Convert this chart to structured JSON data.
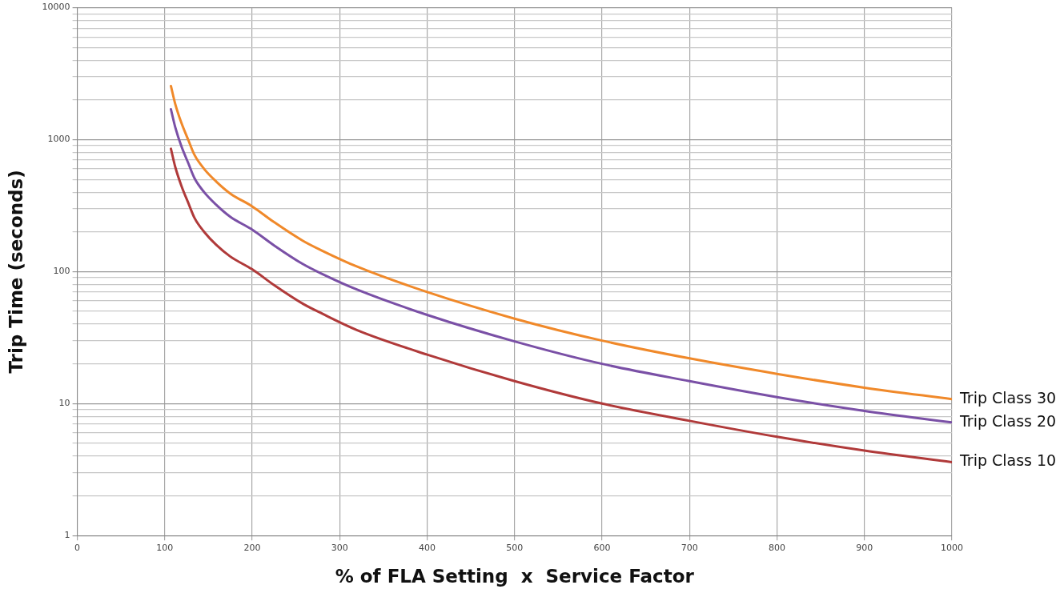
{
  "chart_data": {
    "type": "line",
    "xlabel": "% of FLA Setting  x  Service Factor",
    "ylabel": "Trip Time (seconds)",
    "log": "y",
    "grid": true,
    "legend": false,
    "marker": "none",
    "line_style": "solid",
    "xlim": [
      0,
      1000
    ],
    "xticks": [
      0,
      100,
      200,
      300,
      400,
      500,
      600,
      700,
      800,
      900,
      1000
    ],
    "ylim": [
      1,
      10000
    ],
    "yticks": [
      1,
      {
        "value": 2,
        "label": null
      },
      {
        "value": 3,
        "label": null
      },
      {
        "value": 4,
        "label": null
      },
      {
        "value": 5,
        "label": null
      },
      {
        "value": 6,
        "label": null
      },
      {
        "value": 7,
        "label": null
      },
      {
        "value": 8,
        "label": null
      },
      {
        "value": 9,
        "label": null
      },
      10,
      {
        "value": 20,
        "label": null
      },
      {
        "value": 30,
        "label": null
      },
      {
        "value": 40,
        "label": null
      },
      {
        "value": 50,
        "label": null
      },
      {
        "value": 60,
        "label": null
      },
      {
        "value": 70,
        "label": null
      },
      {
        "value": 80,
        "label": null
      },
      {
        "value": 90,
        "label": null
      },
      100,
      {
        "value": 200,
        "label": null
      },
      {
        "value": 300,
        "label": null
      },
      {
        "value": 400,
        "label": null
      },
      {
        "value": 500,
        "label": null
      },
      {
        "value": 600,
        "label": null
      },
      {
        "value": 700,
        "label": null
      },
      {
        "value": 800,
        "label": null
      },
      {
        "value": 900,
        "label": null
      },
      1000,
      {
        "value": 2000,
        "label": null
      },
      {
        "value": 3000,
        "label": null
      },
      {
        "value": 4000,
        "label": null
      },
      {
        "value": 5000,
        "label": null
      },
      {
        "value": 6000,
        "label": null
      },
      {
        "value": 7000,
        "label": null
      },
      {
        "value": 8000,
        "label": null
      },
      {
        "value": 9000,
        "label": null
      },
      10000
    ],
    "x": [
      107,
      112,
      119,
      127,
      134,
      145,
      159,
      175,
      200,
      225,
      258,
      280,
      320,
      400,
      500,
      600,
      700,
      800,
      900,
      1000
    ],
    "series": [
      {
        "name": "Trip Class 30",
        "color": "#f0892a",
        "values": [
          2550,
          1860,
          1340,
          990,
          765,
          600,
          480,
          390,
          312,
          237,
          171,
          144,
          109,
          70,
          44,
          30,
          22,
          16.8,
          13.2,
          10.8
        ]
      },
      {
        "name": "Trip Class 20",
        "color": "#7a50a6",
        "values": [
          1700,
          1240,
          890,
          660,
          510,
          400,
          320,
          260,
          208,
          158,
          114,
          96,
          73,
          47,
          29.6,
          20,
          14.8,
          11.2,
          8.8,
          7.2
        ]
      },
      {
        "name": "Trip Class 10",
        "color": "#b03a3a",
        "values": [
          853,
          620,
          447,
          330,
          255,
          200,
          159,
          130,
          104,
          79,
          57,
          48,
          36,
          23.5,
          14.8,
          10,
          7.4,
          5.6,
          4.4,
          3.6
        ]
      }
    ]
  }
}
